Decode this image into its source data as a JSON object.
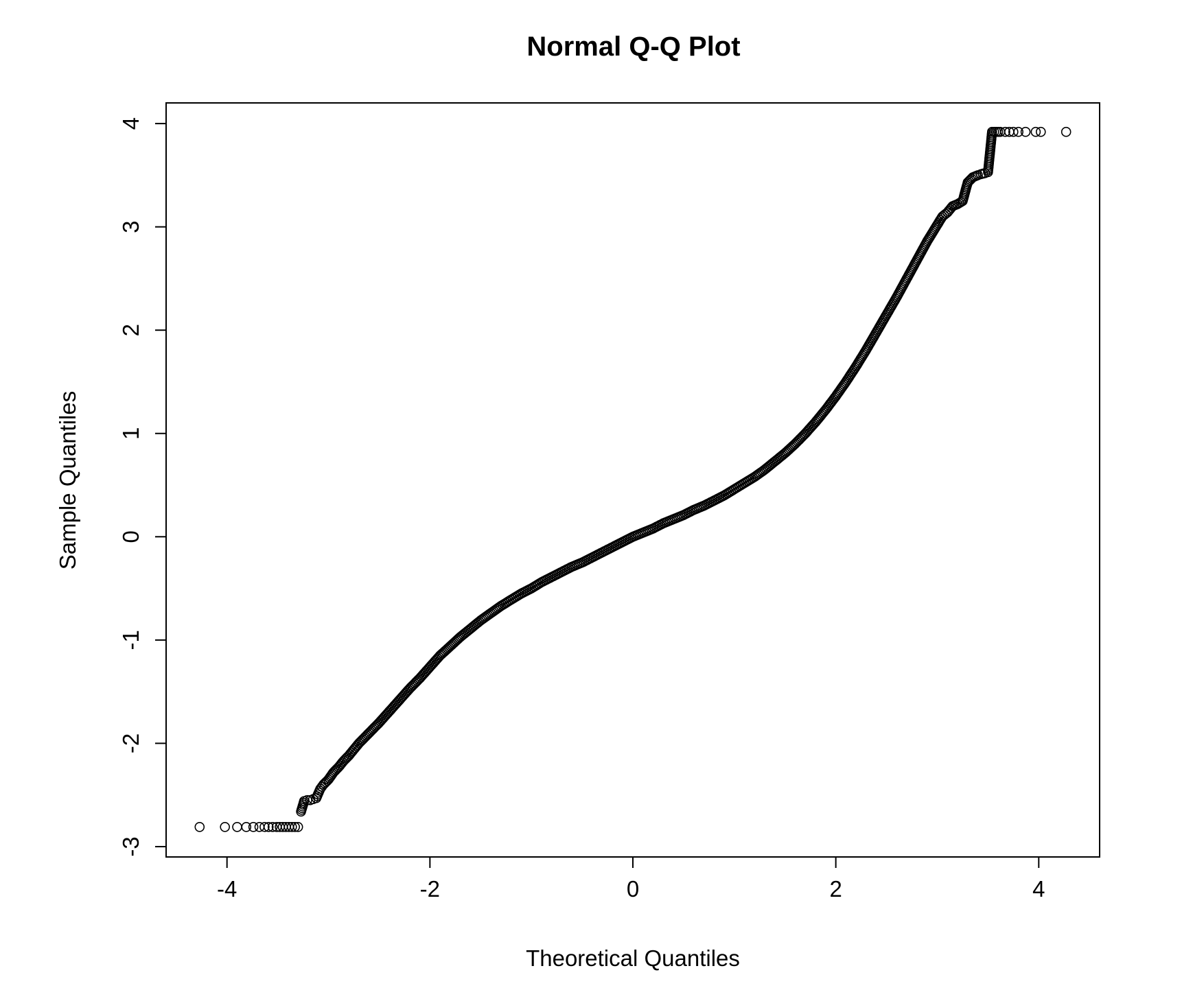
{
  "chart_data": {
    "type": "scatter",
    "title": "Normal Q-Q Plot",
    "xlabel": "Theoretical Quantiles",
    "ylabel": "Sample Quantiles",
    "xlim": [
      -4.6,
      4.6
    ],
    "ylim": [
      -3.1,
      4.2
    ],
    "x_ticks": [
      -4,
      -2,
      0,
      2,
      4
    ],
    "x_tick_labels": [
      "-4",
      "-2",
      "0",
      "2",
      "4"
    ],
    "y_ticks": [
      -3,
      -2,
      -1,
      0,
      1,
      2,
      3,
      4
    ],
    "y_tick_labels": [
      "-3",
      "-2",
      "-1",
      "0",
      "1",
      "2",
      "3",
      "4"
    ],
    "grid": false,
    "marker": "open-circle",
    "series": [
      {
        "x": [
          -4.27,
          -4.02,
          -3.9,
          -3.81,
          -3.74,
          -3.68,
          -3.63,
          -3.59,
          -3.55,
          -3.51,
          -3.48,
          -3.45,
          -3.42,
          -3.39,
          -3.36,
          -3.33,
          -3.3,
          -3.27,
          -3.24,
          -3.21,
          -3.18,
          -3.15,
          -3.12,
          -3.08,
          -3.05,
          -3.0,
          -2.95,
          -2.9,
          -2.85,
          -2.8,
          -2.75,
          -2.7,
          -2.6,
          -2.5,
          -2.4,
          -2.3,
          -2.2,
          -2.1,
          -2.0,
          -1.9,
          -1.8,
          -1.7,
          -1.6,
          -1.5,
          -1.4,
          -1.3,
          -1.2,
          -1.1,
          -1.0,
          -0.9,
          -0.8,
          -0.7,
          -0.6,
          -0.5,
          -0.4,
          -0.3,
          -0.2,
          -0.1,
          0.0,
          0.1,
          0.2,
          0.3,
          0.4,
          0.5,
          0.6,
          0.7,
          0.8,
          0.9,
          1.0,
          1.1,
          1.2,
          1.3,
          1.4,
          1.5,
          1.6,
          1.7,
          1.8,
          1.9,
          2.0,
          2.1,
          2.2,
          2.3,
          2.4,
          2.5,
          2.6,
          2.7,
          2.8,
          2.9,
          3.0,
          3.05,
          3.1,
          3.15,
          3.2,
          3.25,
          3.3,
          3.35,
          3.4,
          3.43,
          3.47,
          3.5,
          3.54,
          3.58,
          3.62,
          3.67,
          3.71,
          3.75,
          3.8,
          3.87,
          3.97,
          4.02,
          4.27
        ],
        "y": [
          -2.81,
          -2.81,
          -2.81,
          -2.81,
          -2.81,
          -2.81,
          -2.81,
          -2.81,
          -2.81,
          -2.81,
          -2.81,
          -2.81,
          -2.81,
          -2.81,
          -2.81,
          -2.81,
          -2.81,
          -2.66,
          -2.56,
          -2.55,
          -2.55,
          -2.54,
          -2.53,
          -2.44,
          -2.4,
          -2.35,
          -2.28,
          -2.23,
          -2.17,
          -2.12,
          -2.06,
          -2.0,
          -1.9,
          -1.8,
          -1.69,
          -1.58,
          -1.47,
          -1.37,
          -1.26,
          -1.15,
          -1.06,
          -0.97,
          -0.89,
          -0.81,
          -0.74,
          -0.67,
          -0.61,
          -0.55,
          -0.5,
          -0.44,
          -0.39,
          -0.34,
          -0.29,
          -0.25,
          -0.2,
          -0.15,
          -0.1,
          -0.05,
          0.0,
          0.04,
          0.08,
          0.13,
          0.17,
          0.21,
          0.26,
          0.3,
          0.35,
          0.4,
          0.46,
          0.52,
          0.58,
          0.65,
          0.73,
          0.81,
          0.9,
          1.0,
          1.11,
          1.23,
          1.36,
          1.5,
          1.65,
          1.81,
          1.98,
          2.15,
          2.32,
          2.5,
          2.68,
          2.86,
          3.02,
          3.1,
          3.14,
          3.2,
          3.22,
          3.25,
          3.43,
          3.48,
          3.5,
          3.51,
          3.52,
          3.53,
          3.92,
          3.92,
          3.92,
          3.92,
          3.92,
          3.92,
          3.92,
          3.92,
          3.92,
          3.92,
          3.92
        ]
      }
    ]
  }
}
